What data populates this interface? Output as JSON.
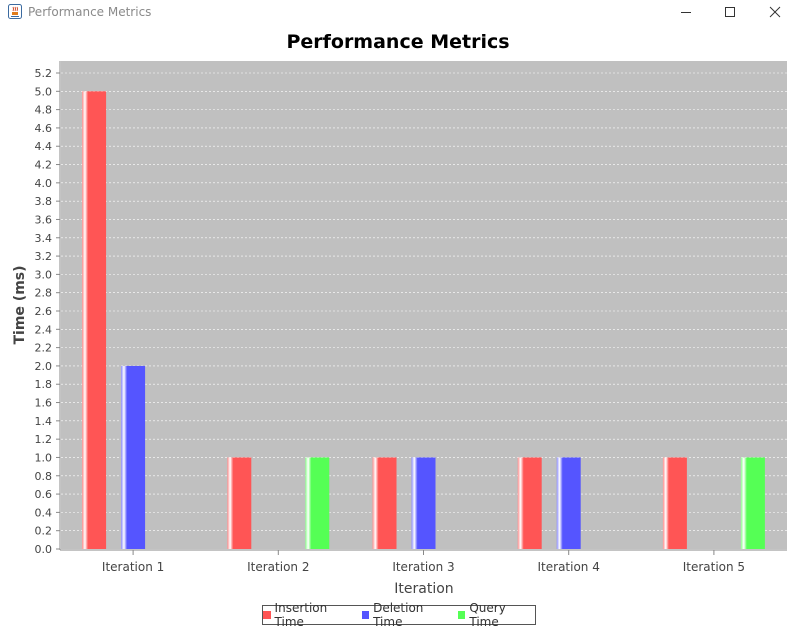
{
  "window": {
    "title": "Performance Metrics",
    "app_icon": "java-cup-icon",
    "controls": [
      "minimize-icon",
      "maximize-icon",
      "close-icon"
    ]
  },
  "chart_data": {
    "type": "bar",
    "title": "Performance Metrics",
    "xlabel": "Iteration",
    "ylabel": "Time (ms)",
    "categories": [
      "Iteration 1",
      "Iteration 2",
      "Iteration 3",
      "Iteration 4",
      "Iteration 5"
    ],
    "series": [
      {
        "name": "Insertion Time",
        "color": "#ff5555",
        "values": [
          5.0,
          1.0,
          1.0,
          1.0,
          1.0
        ]
      },
      {
        "name": "Deletion Time",
        "color": "#5555ff",
        "values": [
          2.0,
          0.0,
          1.0,
          1.0,
          0.0
        ]
      },
      {
        "name": "Query Time",
        "color": "#55ff55",
        "values": [
          0.0,
          1.0,
          0.0,
          0.0,
          1.0
        ]
      }
    ],
    "ylim": [
      0,
      5.2
    ],
    "ytick_step": 0.2,
    "yticks": [
      "0.0",
      "0.2",
      "0.4",
      "0.6",
      "0.8",
      "1.0",
      "1.2",
      "1.4",
      "1.6",
      "1.8",
      "2.0",
      "2.2",
      "2.4",
      "2.6",
      "2.8",
      "3.0",
      "3.2",
      "3.4",
      "3.6",
      "3.8",
      "4.0",
      "4.2",
      "4.4",
      "4.6",
      "4.8",
      "5.0",
      "5.2"
    ],
    "grid": true,
    "legend_position": "bottom",
    "plot_background": "#c0c0c0"
  }
}
